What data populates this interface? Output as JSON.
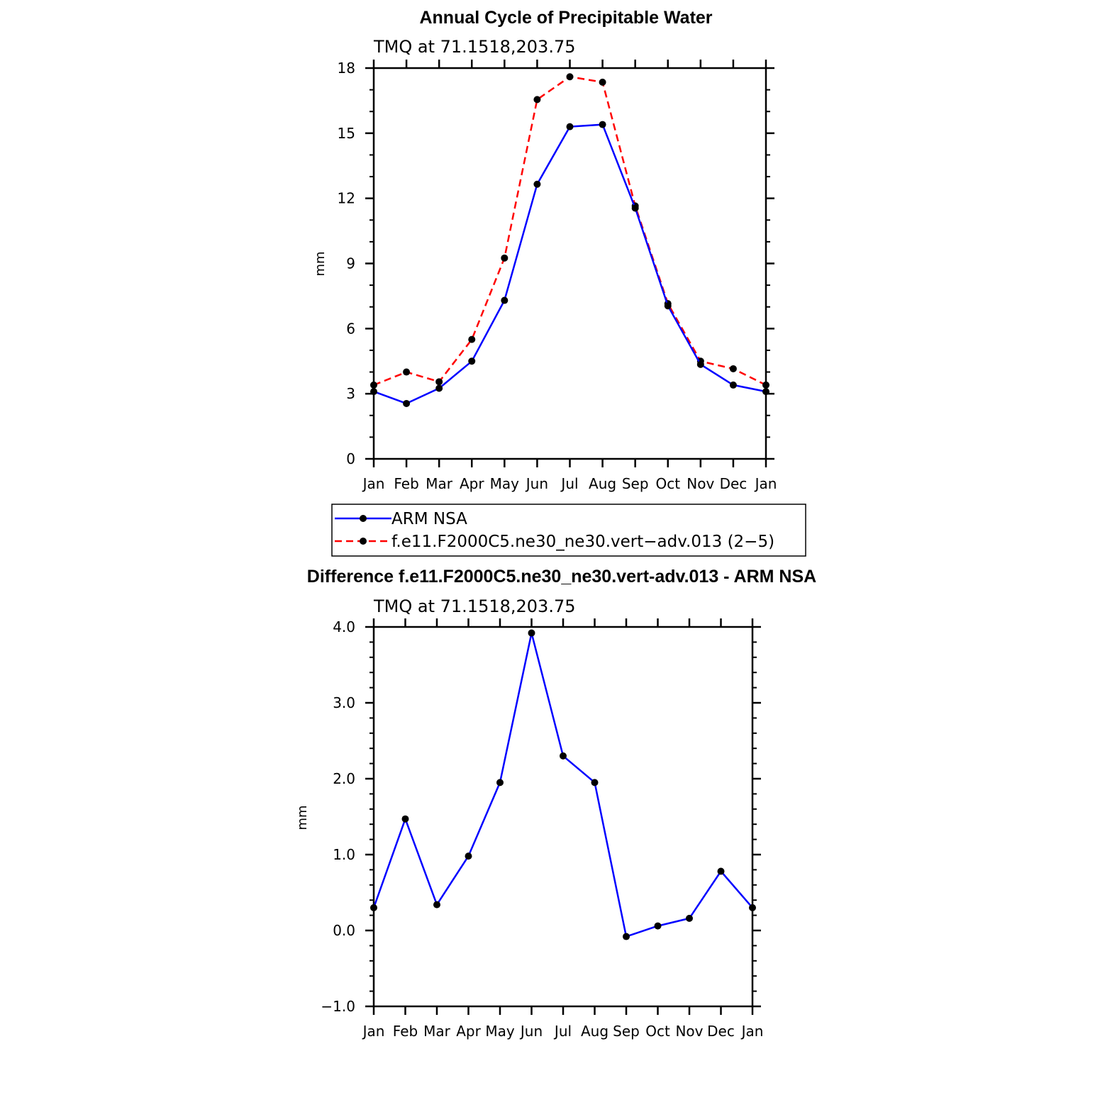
{
  "chart_data": [
    {
      "type": "line",
      "title": "Annual Cycle of Precipitable Water",
      "subtitle": "TMQ at 71.1518,203.75",
      "ylabel": "mm",
      "xlabel": "",
      "categories": [
        "Jan",
        "Feb",
        "Mar",
        "Apr",
        "May",
        "Jun",
        "Jul",
        "Aug",
        "Sep",
        "Oct",
        "Nov",
        "Dec",
        "Jan"
      ],
      "ylim": [
        0,
        18
      ],
      "yticks": [
        "0",
        "3",
        "6",
        "9",
        "12",
        "15",
        "18"
      ],
      "yminor_step": 1,
      "series": [
        {
          "name": "ARM NSA",
          "color": "#0000ff",
          "dash": "solid",
          "marker": "circle",
          "values": [
            3.1,
            2.55,
            3.25,
            4.5,
            7.3,
            12.65,
            15.3,
            15.4,
            11.55,
            7.05,
            4.35,
            3.4,
            3.1
          ]
        },
        {
          "name": "f.e11.F2000C5.ne30_ne30.vert−adv.013 (2−5)",
          "color": "#ff0000",
          "dash": "dashed",
          "marker": "circle",
          "values": [
            3.4,
            4.0,
            3.55,
            5.5,
            9.25,
            16.55,
            17.6,
            17.35,
            11.65,
            7.15,
            4.5,
            4.15,
            3.4
          ]
        }
      ],
      "legend": "below",
      "grid": false
    },
    {
      "type": "line",
      "title": "Difference f.e11.F2000C5.ne30_ne30.vert-adv.013 - ARM NSA",
      "subtitle": "TMQ at 71.1518,203.75",
      "ylabel": "mm",
      "xlabel": "",
      "categories": [
        "Jan",
        "Feb",
        "Mar",
        "Apr",
        "May",
        "Jun",
        "Jul",
        "Aug",
        "Sep",
        "Oct",
        "Nov",
        "Dec",
        "Jan"
      ],
      "ylim": [
        -1.0,
        4.0
      ],
      "yticks": [
        "−1.0",
        "0.0",
        "1.0",
        "2.0",
        "3.0",
        "4.0"
      ],
      "yminor_step": 0.2,
      "series": [
        {
          "color": "#0000ff",
          "dash": "solid",
          "marker": "circle",
          "values": [
            0.3,
            1.47,
            0.34,
            0.98,
            1.95,
            3.92,
            2.3,
            1.95,
            -0.08,
            0.06,
            0.16,
            0.78,
            0.3
          ]
        }
      ],
      "grid": false
    }
  ]
}
